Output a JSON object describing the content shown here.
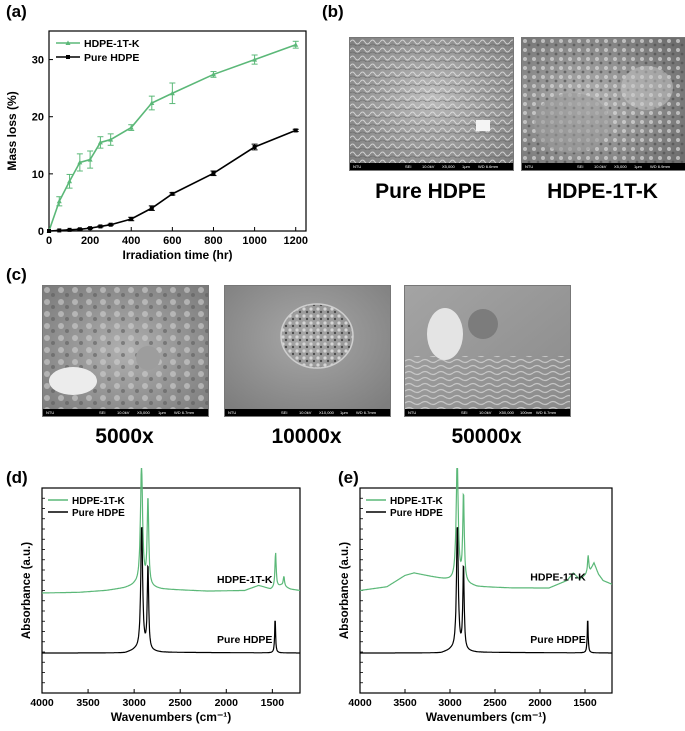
{
  "panel_labels": {
    "a": "(a)",
    "b": "(b)",
    "c": "(c)",
    "d": "(d)",
    "e": "(e)"
  },
  "colors": {
    "hdpe_1t_k": "#5bb878",
    "pure_hdpe": "#000000"
  },
  "sem_b": {
    "images": [
      {
        "caption": "Pure HDPE",
        "bar": {
          "lab": "NTU",
          "det": "SEI",
          "kv": "10.0kV",
          "mag": "X5,000",
          "scale": "1μm",
          "wd": "WD 6.6mm"
        }
      },
      {
        "caption": "HDPE-1T-K",
        "bar": {
          "lab": "NTU",
          "det": "SEI",
          "kv": "10.0kV",
          "mag": "X5,000",
          "scale": "1μm",
          "wd": "WD 6.9mm"
        }
      }
    ]
  },
  "sem_c": {
    "images": [
      {
        "caption": "5000x",
        "bar": {
          "lab": "NTU",
          "det": "SEI",
          "kv": "10.0kV",
          "mag": "X5,000",
          "scale": "1μm",
          "wd": "WD 6.7mm"
        }
      },
      {
        "caption": "10000x",
        "bar": {
          "lab": "NTU",
          "det": "SEI",
          "kv": "10.0kV",
          "mag": "X10,000",
          "scale": "1μm",
          "wd": "WD 6.7mm"
        }
      },
      {
        "caption": "50000x",
        "bar": {
          "lab": "NTU",
          "det": "SEI",
          "kv": "10.0kV",
          "mag": "X50,000",
          "scale": "100nm",
          "wd": "WD 6.7mm"
        }
      }
    ]
  },
  "chart_data": [
    {
      "id": "a",
      "type": "line",
      "xlabel": "Irradiation time (hr)",
      "ylabel": "Mass loss (%)",
      "xlim": [
        0,
        1250
      ],
      "ylim": [
        0,
        35
      ],
      "xticks": [
        0,
        200,
        400,
        600,
        800,
        1000,
        1200
      ],
      "yticks": [
        0,
        10,
        20,
        30
      ],
      "legend_position": "top-left",
      "series": [
        {
          "name": "HDPE-1T-K",
          "color": "#5bb878",
          "marker": "triangle",
          "x": [
            0,
            50,
            100,
            150,
            200,
            250,
            300,
            400,
            500,
            600,
            800,
            1000,
            1200
          ],
          "y": [
            0,
            5.2,
            8.7,
            12.0,
            12.5,
            15.5,
            16.0,
            18.1,
            22.4,
            24.1,
            27.4,
            30.0,
            32.6
          ],
          "err": [
            0,
            0.8,
            1.2,
            1.5,
            1.5,
            1.0,
            1.0,
            0.5,
            1.2,
            1.8,
            0.5,
            0.8,
            0.6
          ]
        },
        {
          "name": "Pure HDPE",
          "color": "#000000",
          "marker": "square",
          "x": [
            0,
            50,
            100,
            150,
            200,
            250,
            300,
            400,
            500,
            600,
            800,
            1000,
            1200
          ],
          "y": [
            0,
            0.1,
            0.2,
            0.3,
            0.5,
            0.8,
            1.1,
            2.1,
            4.0,
            6.5,
            10.1,
            14.7,
            17.6
          ],
          "err": [
            0,
            0.05,
            0.05,
            0.1,
            0.1,
            0.1,
            0.1,
            0.3,
            0.4,
            0.2,
            0.4,
            0.5,
            0.2
          ]
        }
      ]
    },
    {
      "id": "d",
      "type": "line",
      "xlabel": "Wavenumbers (cm⁻¹)",
      "ylabel": "Absorbance (a.u.)",
      "xlim": [
        4000,
        1200
      ],
      "xticks": [
        4000,
        3500,
        3000,
        2500,
        2000,
        1500
      ],
      "legend_position": "top-left",
      "series": [
        {
          "name": "HDPE-1T-K",
          "label": "HDPE-1T-K",
          "color": "#5bb878",
          "offset": 0.48,
          "baseline": [
            [
              4000,
              0
            ],
            [
              3600,
              0.005
            ],
            [
              3300,
              0.02
            ],
            [
              3100,
              0.04
            ],
            [
              2990,
              0.06
            ],
            [
              2700,
              0.03
            ],
            [
              2200,
              0.015
            ],
            [
              1800,
              0.02
            ],
            [
              1650,
              0.06
            ],
            [
              1600,
              0.05
            ],
            [
              1520,
              0.03
            ],
            [
              1400,
              0.06
            ],
            [
              1300,
              0.03
            ],
            [
              1200,
              0.02
            ]
          ],
          "peaks": [
            [
              2920,
              0.95,
              14
            ],
            [
              2850,
              0.7,
              10
            ],
            [
              1465,
              0.28,
              8
            ],
            [
              1375,
              0.08,
              8
            ]
          ]
        },
        {
          "name": "Pure HDPE",
          "label": "Pure HDPE",
          "color": "#000000",
          "offset": 0,
          "baseline": [
            [
              4000,
              0
            ],
            [
              3100,
              0
            ],
            [
              2990,
              0.02
            ],
            [
              2700,
              0.005
            ],
            [
              1200,
              0
            ]
          ],
          "peaks": [
            [
              2918,
              1.0,
              12
            ],
            [
              2850,
              0.68,
              9
            ],
            [
              1470,
              0.28,
              6
            ]
          ]
        }
      ]
    },
    {
      "id": "e",
      "type": "line",
      "xlabel": "Wavenumbers (cm⁻¹)",
      "ylabel": "Absorbance (a.u.)",
      "xlim": [
        4000,
        1200
      ],
      "xticks": [
        4000,
        3500,
        3000,
        2500,
        2000,
        1500
      ],
      "legend_position": "top-left",
      "series": [
        {
          "name": "HDPE-1T-K",
          "label": "HDPE-1T-K",
          "color": "#5bb878",
          "offset": 0.5,
          "baseline": [
            [
              4000,
              0
            ],
            [
              3700,
              0.03
            ],
            [
              3500,
              0.12
            ],
            [
              3400,
              0.14
            ],
            [
              3200,
              0.11
            ],
            [
              3000,
              0.08
            ],
            [
              2700,
              0.03
            ],
            [
              2300,
              0.02
            ],
            [
              1900,
              0.02
            ],
            [
              1700,
              0.08
            ],
            [
              1630,
              0.14
            ],
            [
              1560,
              0.09
            ],
            [
              1500,
              0.12
            ],
            [
              1440,
              0.16
            ],
            [
              1400,
              0.22
            ],
            [
              1350,
              0.13
            ],
            [
              1300,
              0.08
            ],
            [
              1200,
              0.05
            ]
          ],
          "peaks": [
            [
              2920,
              0.95,
              14
            ],
            [
              2850,
              0.7,
              10
            ],
            [
              1465,
              0.14,
              8
            ]
          ]
        },
        {
          "name": "Pure HDPE",
          "label": "Pure HDPE",
          "color": "#000000",
          "offset": 0,
          "baseline": [
            [
              4000,
              0
            ],
            [
              3100,
              0
            ],
            [
              2990,
              0.02
            ],
            [
              2700,
              0.005
            ],
            [
              1200,
              0
            ]
          ],
          "peaks": [
            [
              2918,
              1.0,
              12
            ],
            [
              2850,
              0.68,
              9
            ],
            [
              1470,
              0.28,
              6
            ]
          ]
        }
      ]
    }
  ]
}
